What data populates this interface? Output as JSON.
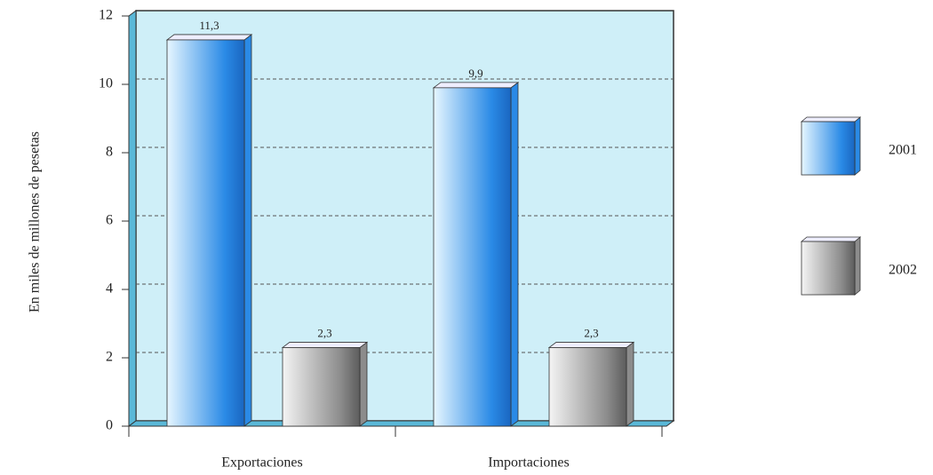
{
  "chart_data": {
    "type": "bar3d",
    "y_label": "En miles de millones de pesetas",
    "categories": [
      "Exportaciones",
      "Importaciones"
    ],
    "series": [
      {
        "name": "2001",
        "color": "#2a8ae6",
        "values": [
          11.3,
          9.9
        ],
        "value_labels": [
          "11,3",
          "9,9"
        ]
      },
      {
        "name": "2002",
        "color": "#8c8c8c",
        "values": [
          2.3,
          2.3
        ],
        "value_labels": [
          "2,3",
          "2,3"
        ]
      }
    ],
    "ylim": [
      0,
      12
    ],
    "yticks": [
      0,
      2,
      4,
      6,
      8,
      10,
      12
    ],
    "grid": true,
    "legend": "right"
  }
}
